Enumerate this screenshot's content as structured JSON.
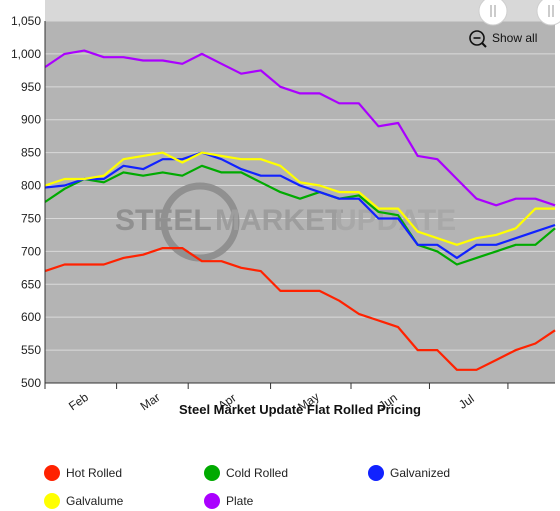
{
  "zoom": {
    "show_all_label": "Show all"
  },
  "watermark": {
    "word1": "STEEL",
    "word2": "MARKET",
    "word3": "UPDATE"
  },
  "chart_data": {
    "type": "line",
    "title": "Steel Market Update Flat Rolled Pricing",
    "xlabel": "",
    "ylabel": "",
    "x_tick_labels": [
      "Feb",
      "Mar",
      "Apr",
      "May",
      "Jun",
      "Jul"
    ],
    "y_ticks": [
      500,
      550,
      600,
      650,
      700,
      750,
      800,
      850,
      900,
      950,
      1000,
      1050
    ],
    "y_tick_labels": [
      "500",
      "550",
      "600",
      "650",
      "700",
      "750",
      "800",
      "850",
      "900",
      "950",
      "1,000",
      "1,050"
    ],
    "ylim": [
      500,
      1050
    ],
    "grid": true,
    "legend_position": "bottom",
    "x_points": 26,
    "series": [
      {
        "name": "Hot Rolled",
        "color": "#ff2200",
        "values": [
          670,
          680,
          680,
          680,
          690,
          695,
          705,
          705,
          685,
          685,
          675,
          670,
          640,
          640,
          640,
          625,
          605,
          595,
          585,
          550,
          550,
          520,
          520,
          535,
          550,
          560,
          580
        ]
      },
      {
        "name": "Cold Rolled",
        "color": "#00aa00",
        "values": [
          775,
          795,
          810,
          805,
          820,
          815,
          820,
          815,
          830,
          820,
          820,
          805,
          790,
          780,
          790,
          780,
          785,
          760,
          755,
          710,
          700,
          680,
          690,
          700,
          710,
          710,
          735
        ]
      },
      {
        "name": "Galvanized",
        "color": "#1122ff",
        "values": [
          797,
          800,
          810,
          810,
          830,
          825,
          840,
          840,
          850,
          840,
          825,
          815,
          815,
          800,
          790,
          780,
          780,
          750,
          750,
          710,
          710,
          690,
          710,
          710,
          720,
          730,
          740
        ]
      },
      {
        "name": "Galvalume",
        "color": "#ffff00",
        "values": [
          800,
          810,
          810,
          815,
          840,
          845,
          850,
          835,
          850,
          845,
          840,
          840,
          830,
          805,
          800,
          790,
          790,
          765,
          765,
          730,
          720,
          710,
          720,
          725,
          735,
          765,
          765
        ]
      },
      {
        "name": "Plate",
        "color": "#aa00ff",
        "values": [
          980,
          1000,
          1005,
          995,
          995,
          990,
          990,
          985,
          1000,
          985,
          970,
          975,
          950,
          940,
          940,
          925,
          925,
          890,
          895,
          845,
          840,
          810,
          780,
          770,
          780,
          780,
          770
        ]
      }
    ]
  }
}
